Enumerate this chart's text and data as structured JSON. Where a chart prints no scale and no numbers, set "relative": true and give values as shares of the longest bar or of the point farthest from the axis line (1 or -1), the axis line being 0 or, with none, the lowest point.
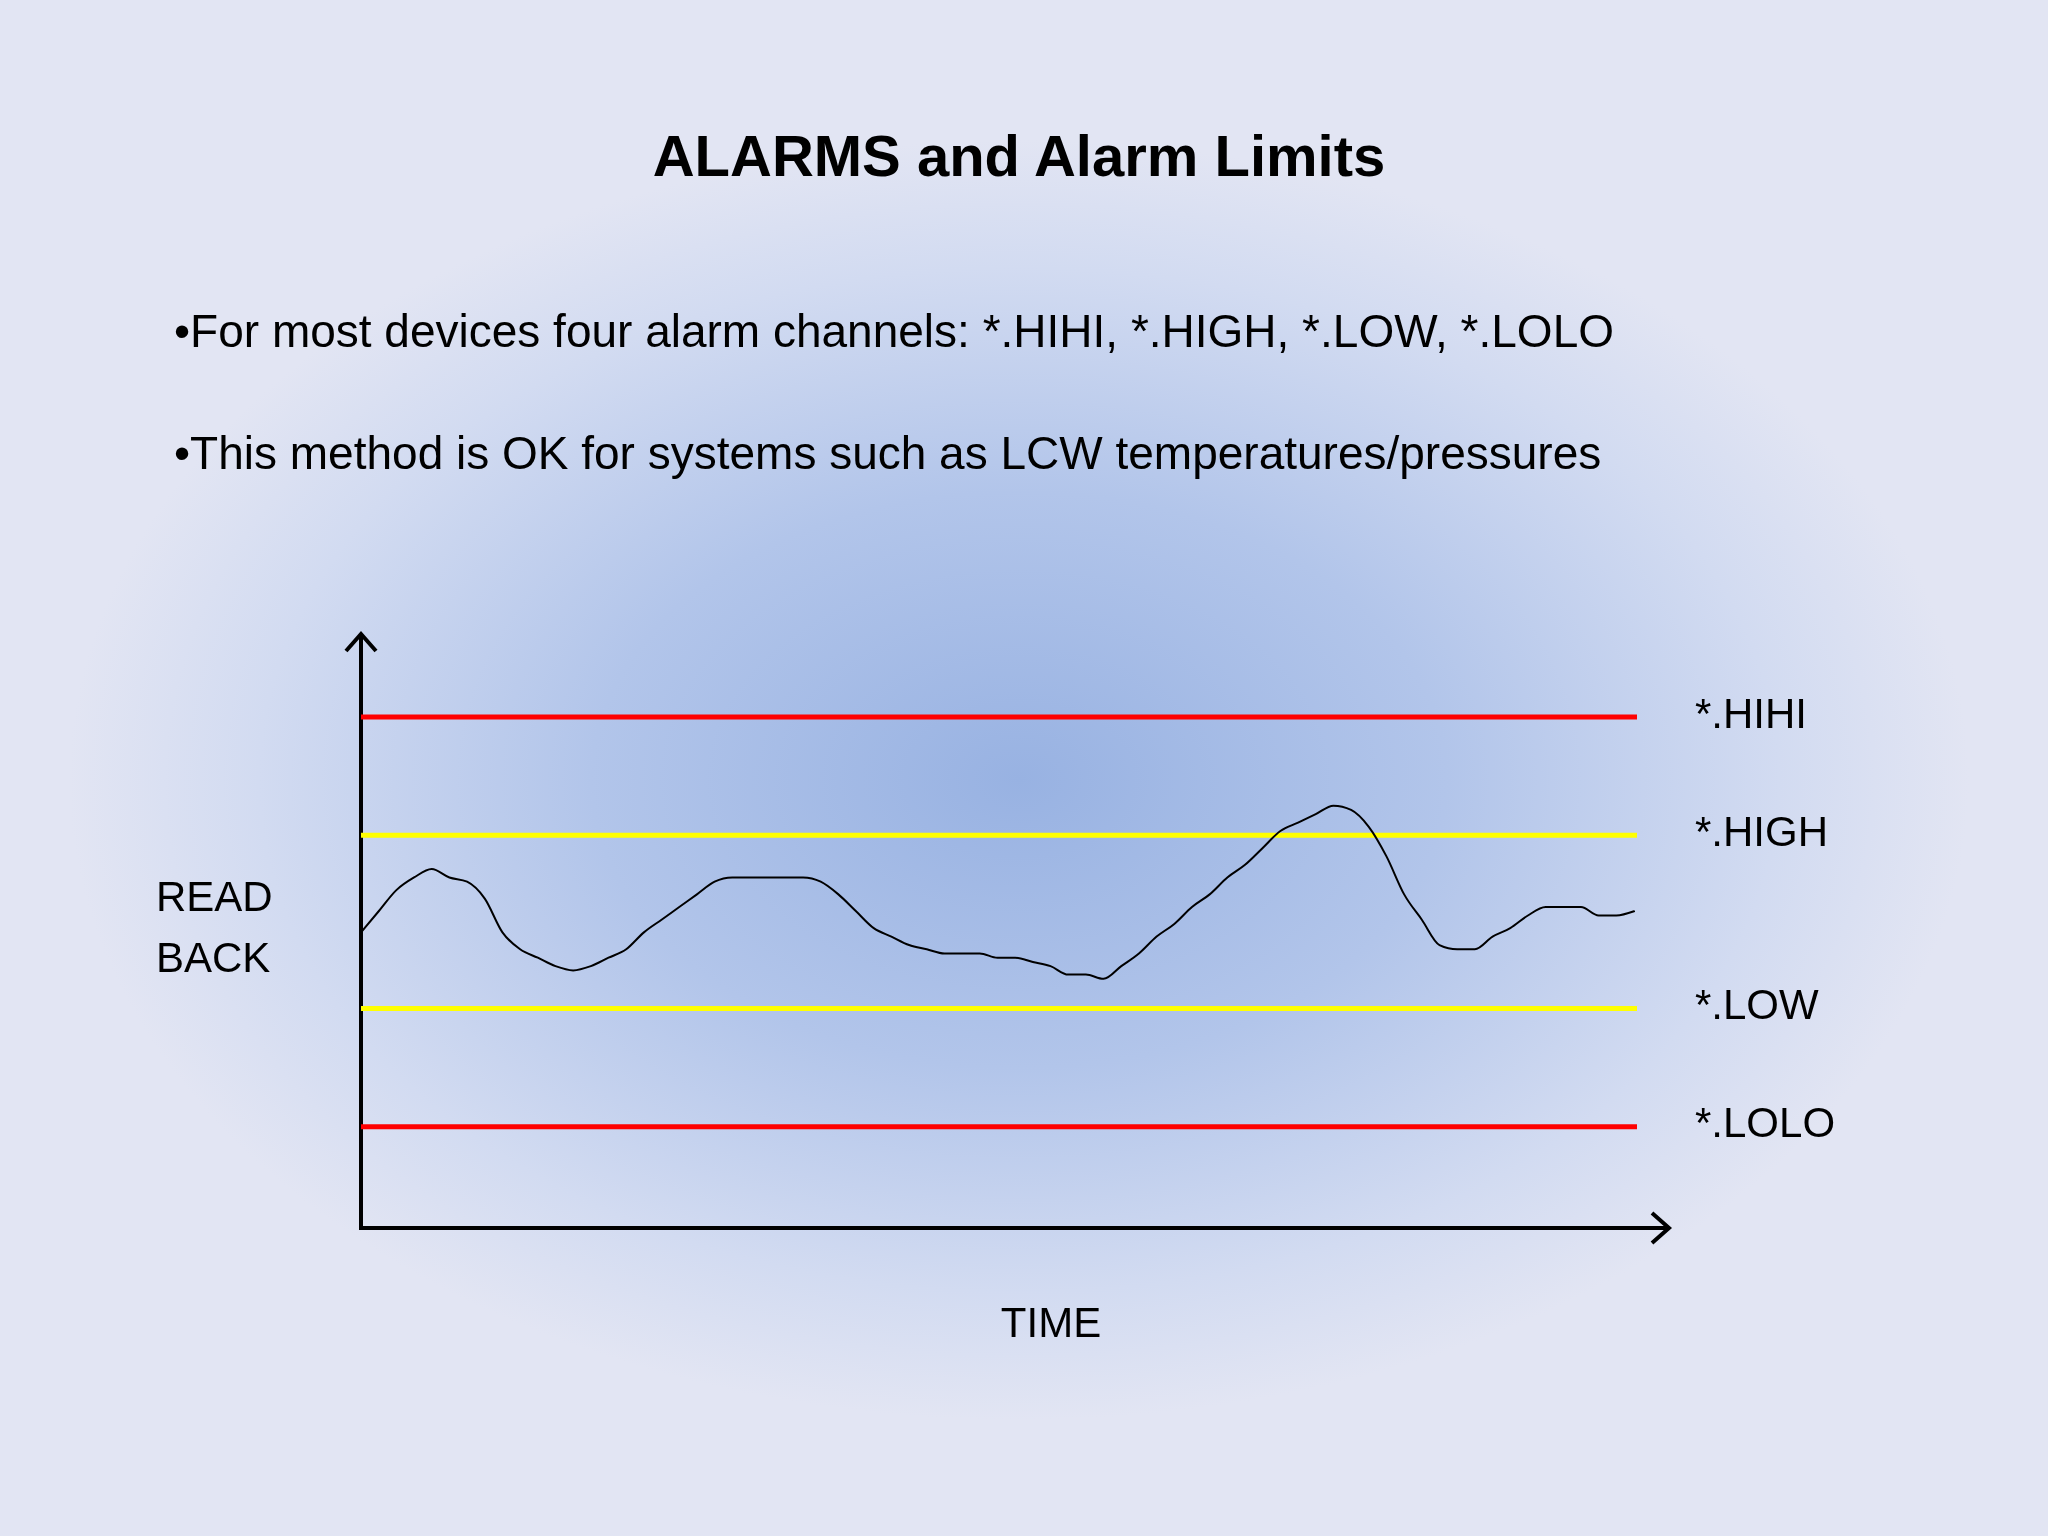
{
  "chart_data": {
    "type": "line",
    "title": "ALARMS and Alarm Limits",
    "xlabel": "TIME",
    "ylabel": "READ BACK",
    "annotations": [
      "•For most devices four alarm channels: *.HIHI, *.HIGH, *.LOW, *.LOLO",
      "•This method is OK for systems such as LCW temperatures/pressures"
    ],
    "categories": [
      null,
      null,
      null,
      null,
      null,
      null,
      null,
      null,
      null,
      null,
      null,
      null,
      null,
      null,
      null,
      null,
      null,
      null,
      null,
      null,
      null,
      null,
      null,
      null,
      null,
      null,
      null,
      null,
      null,
      null,
      null,
      null,
      null,
      null,
      null,
      null,
      null,
      null,
      null,
      null,
      null,
      null,
      null,
      null,
      null,
      null,
      null,
      null,
      null,
      null,
      null,
      null,
      null,
      null,
      null,
      null,
      null,
      null,
      null,
      null,
      null,
      null,
      null,
      null,
      null,
      null,
      null,
      null,
      null,
      null,
      null,
      null,
      null
    ],
    "series": [
      {
        "color": "#000000",
        "values": [
          0.7,
          0.75,
          0.8,
          0.83,
          0.85,
          0.83,
          0.82,
          0.78,
          0.7,
          0.66,
          0.64,
          0.62,
          0.61,
          0.62,
          0.64,
          0.66,
          0.7,
          0.73,
          0.76,
          0.79,
          0.82,
          0.83,
          0.83,
          0.83,
          0.83,
          0.83,
          0.82,
          0.79,
          0.75,
          0.71,
          0.69,
          0.67,
          0.66,
          0.65,
          0.65,
          0.65,
          0.64,
          0.64,
          0.63,
          0.62,
          0.6,
          0.6,
          0.59,
          0.62,
          0.65,
          0.69,
          0.72,
          0.76,
          0.79,
          0.83,
          0.86,
          0.9,
          0.94,
          0.96,
          0.98,
          1,
          0.99,
          0.95,
          0.88,
          0.79,
          0.73,
          0.67,
          0.66,
          0.66,
          0.69,
          0.71,
          0.74,
          0.76,
          0.76,
          0.76,
          0.74,
          0.74,
          0.75
        ]
      }
    ],
    "relative": true,
    "ref_lines": [
      {
        "axis": "y",
        "value": 1.21,
        "label": "*.HIHI",
        "color": "#ff0000"
      },
      {
        "axis": "y",
        "value": 0.93,
        "label": "*.HIGH",
        "color": "#ffff00"
      },
      {
        "axis": "y",
        "value": 0.52,
        "label": "*.LOW",
        "color": "#ffff00"
      },
      {
        "axis": "y",
        "value": 0.24,
        "label": "*.LOLO",
        "color": "#ff0000"
      }
    ]
  }
}
